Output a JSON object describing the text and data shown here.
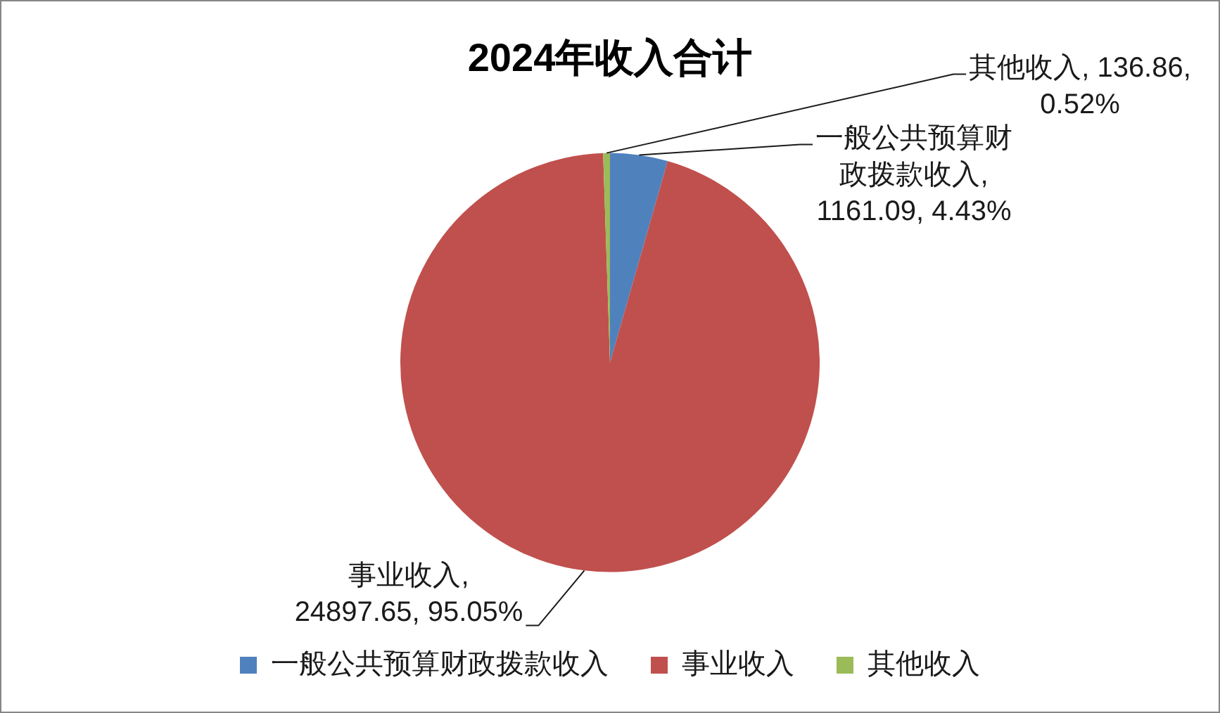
{
  "chart_data": {
    "type": "pie",
    "title": "2024年收入合计",
    "categories": [
      "一般公共预算财政拨款收入",
      "事业收入",
      "其他收入"
    ],
    "values": [
      1161.09,
      24897.65,
      136.86
    ],
    "colors": [
      "#4f81bd",
      "#c0504d",
      "#9bbb59"
    ],
    "value_labels": [
      "一般公共预算财政拨款收入, 1161.09, 4.43%",
      "事业收入, 24897.65, 95.05%",
      "其他收入, 136.86, 0.52%"
    ],
    "legend": "bottom"
  }
}
